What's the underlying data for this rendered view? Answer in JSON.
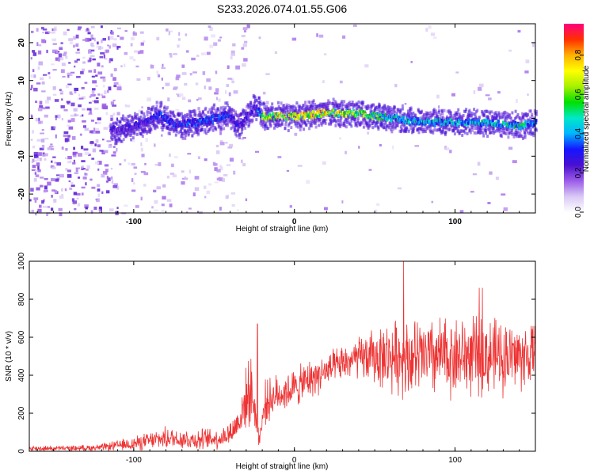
{
  "title": "S233.2026.074.01.55.G06",
  "colors": {
    "snr_line": "#ee3333",
    "axis": "#000000",
    "colormap": [
      "#ffffff",
      "#d9c8f5",
      "#9b5be8",
      "#4a10d0",
      "#1515ff",
      "#00b4ff",
      "#00e8c8",
      "#00e000",
      "#a8f000",
      "#ffff00",
      "#ffb000",
      "#ff3000",
      "#ff0080"
    ]
  },
  "chart_data": [
    {
      "type": "heatmap",
      "name": "spectrogram",
      "xlabel": "Height of straight line (km)",
      "ylabel": "Frequency (Hz)",
      "xlim": [
        -165,
        150
      ],
      "ylim": [
        -25,
        25
      ],
      "xticks": [
        -100,
        0,
        100
      ],
      "xtick_labels": [
        "-100",
        "0",
        "100"
      ],
      "yticks": [
        -20,
        -10,
        0,
        10,
        20
      ],
      "ytick_labels": [
        "-20",
        "-10",
        "0",
        "10",
        "20"
      ],
      "colorbar": {
        "label": "Normalized spectral amplitude",
        "range": [
          0,
          0.96
        ],
        "ticks": [
          0.0,
          0.2,
          0.4,
          0.6,
          0.8
        ],
        "tick_labels": [
          "0.0",
          "0.2",
          "0.4",
          "0.6",
          "0.8"
        ]
      },
      "signal_track": {
        "description_points_x": [
          -110,
          -95,
          -85,
          -75,
          -60,
          -50,
          -42,
          -35,
          -25,
          -20,
          0,
          20,
          40,
          60,
          80,
          100,
          120,
          140,
          150
        ],
        "frequency_hz": [
          -3,
          -1.5,
          1,
          -1.5,
          -1,
          0,
          1,
          -2,
          3,
          0.5,
          0.5,
          1.5,
          1.2,
          0,
          -1,
          -1,
          -1.2,
          -2,
          -1
        ],
        "peak_amplitude": [
          0.25,
          0.3,
          0.35,
          0.35,
          0.4,
          0.4,
          0.35,
          0.3,
          0.3,
          0.7,
          0.8,
          0.8,
          0.7,
          0.55,
          0.5,
          0.5,
          0.5,
          0.55,
          0.45
        ]
      }
    },
    {
      "type": "line",
      "name": "snr",
      "xlabel": "Height of straight line (km)",
      "ylabel": "SNR (10 * v/v)",
      "xlim": [
        -165,
        150
      ],
      "ylim": [
        0,
        1000
      ],
      "xticks": [
        -100,
        0,
        100
      ],
      "xtick_labels": [
        "-100",
        "0",
        "100"
      ],
      "yticks": [
        0,
        200,
        400,
        600,
        800,
        1000
      ],
      "ytick_labels": [
        "0",
        "200",
        "400",
        "600",
        "800",
        "1000"
      ],
      "envelope_x": [
        -165,
        -140,
        -120,
        -100,
        -80,
        -60,
        -45,
        -38,
        -33,
        -28,
        -25,
        -22,
        -18,
        -10,
        0,
        10,
        20,
        30,
        40,
        60,
        80,
        100,
        120,
        140,
        150
      ],
      "envelope_mean": [
        15,
        15,
        20,
        40,
        70,
        60,
        70,
        110,
        190,
        330,
        250,
        60,
        260,
        300,
        330,
        380,
        420,
        460,
        490,
        500,
        490,
        500,
        500,
        500,
        500
      ],
      "envelope_spread": [
        15,
        15,
        20,
        40,
        60,
        60,
        60,
        80,
        120,
        200,
        160,
        50,
        120,
        110,
        110,
        110,
        100,
        100,
        120,
        200,
        230,
        230,
        220,
        200,
        180
      ],
      "peaks": [
        {
          "x": 68,
          "y": 1000
        },
        {
          "x": 117,
          "y": 860
        },
        {
          "x": 115,
          "y": 860
        },
        {
          "x": -23,
          "y": 670
        }
      ]
    }
  ]
}
